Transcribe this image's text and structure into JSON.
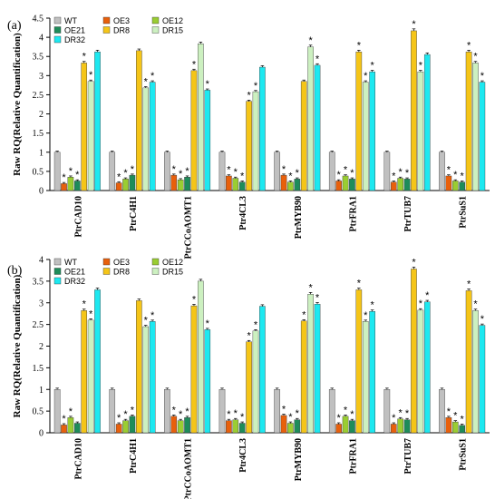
{
  "chart_data": [
    {
      "type": "bar",
      "panel_label": "(a)",
      "title": "",
      "xlabel": "",
      "ylabel": "Raw RQ(Relative Quantification)",
      "ylim": [
        0,
        4.5
      ],
      "yticks": [
        "0",
        "0.5",
        "1",
        "1.5",
        "2",
        "2.5",
        "3",
        "3.5",
        "4",
        "4.5"
      ],
      "grid": false,
      "legend_placement": "top-left",
      "significance_marker": "*",
      "categories": [
        "PtrCAD10",
        "PtrC4H1",
        "PtrCCoAOMT1",
        "Ptr4CL3",
        "PtrMYB90",
        "PtrFRA1",
        "PtrTUB7",
        "PtrSuS1"
      ],
      "series": [
        {
          "name": "WT",
          "color": "#c0c0c0",
          "values": [
            1.0,
            1.0,
            1.0,
            1.0,
            1.0,
            1.0,
            1.0,
            1.0
          ],
          "marked": [
            false,
            false,
            false,
            false,
            false,
            false,
            false,
            false
          ]
        },
        {
          "name": "OE3",
          "color": "#e8600c",
          "values": [
            0.18,
            0.2,
            0.4,
            0.38,
            0.4,
            0.25,
            0.22,
            0.38
          ],
          "marked": [
            true,
            true,
            true,
            true,
            true,
            true,
            true,
            true
          ]
        },
        {
          "name": "OE12",
          "color": "#9acd32",
          "values": [
            0.35,
            0.3,
            0.28,
            0.32,
            0.22,
            0.38,
            0.32,
            0.25
          ],
          "marked": [
            true,
            true,
            true,
            true,
            true,
            true,
            true,
            true
          ]
        },
        {
          "name": "OE21",
          "color": "#1e8c5a",
          "values": [
            0.25,
            0.4,
            0.35,
            0.22,
            0.3,
            0.3,
            0.3,
            0.22
          ],
          "marked": [
            true,
            true,
            true,
            true,
            true,
            true,
            true,
            true
          ]
        },
        {
          "name": "DR8",
          "color": "#f5c518",
          "values": [
            3.33,
            3.65,
            3.13,
            2.33,
            2.85,
            3.62,
            4.17,
            3.62
          ],
          "marked": [
            true,
            false,
            true,
            true,
            false,
            true,
            true,
            true
          ]
        },
        {
          "name": "DR15",
          "color": "#ccf0c0",
          "values": [
            2.85,
            2.68,
            3.83,
            2.58,
            3.75,
            2.83,
            3.1,
            3.33
          ],
          "marked": [
            true,
            true,
            false,
            true,
            true,
            true,
            true,
            true
          ]
        },
        {
          "name": "DR32",
          "color": "#1de8f0",
          "values": [
            3.62,
            2.83,
            2.62,
            3.22,
            3.27,
            3.1,
            3.55,
            2.83
          ],
          "marked": [
            false,
            true,
            true,
            false,
            true,
            true,
            false,
            true
          ]
        }
      ]
    },
    {
      "type": "bar",
      "panel_label": "(b)",
      "title": "",
      "xlabel": "",
      "ylabel": "Raw RQ(Relative Quantification)",
      "ylim": [
        0,
        4
      ],
      "yticks": [
        "0",
        "0.5",
        "1",
        "1.5",
        "2",
        "2.5",
        "3",
        "3.5",
        "4"
      ],
      "grid": false,
      "legend_placement": "top-left",
      "significance_marker": "*",
      "categories": [
        "PtrCAD10",
        "PtrC4H1",
        "PtrCCoAOMT1",
        "Ptr4CL3",
        "PtrMYB90",
        "PtrFRA1",
        "PtrTUB7",
        "PtrSuS1"
      ],
      "series": [
        {
          "name": "WT",
          "color": "#c0c0c0",
          "values": [
            1.0,
            1.0,
            1.0,
            1.0,
            1.0,
            1.0,
            1.0,
            1.0
          ],
          "marked": [
            false,
            false,
            false,
            false,
            false,
            false,
            false,
            false
          ]
        },
        {
          "name": "OE3",
          "color": "#e8600c",
          "values": [
            0.18,
            0.2,
            0.38,
            0.28,
            0.4,
            0.2,
            0.2,
            0.35
          ],
          "marked": [
            true,
            true,
            true,
            true,
            true,
            true,
            true,
            true
          ]
        },
        {
          "name": "OE12",
          "color": "#9acd32",
          "values": [
            0.35,
            0.28,
            0.28,
            0.3,
            0.22,
            0.38,
            0.32,
            0.25
          ],
          "marked": [
            true,
            true,
            true,
            true,
            true,
            true,
            true,
            true
          ]
        },
        {
          "name": "OE21",
          "color": "#1e8c5a",
          "values": [
            0.22,
            0.38,
            0.35,
            0.22,
            0.3,
            0.28,
            0.3,
            0.17
          ],
          "marked": [
            false,
            true,
            true,
            true,
            true,
            true,
            true,
            true
          ]
        },
        {
          "name": "DR8",
          "color": "#f5c518",
          "values": [
            2.82,
            3.05,
            2.93,
            2.1,
            2.58,
            3.3,
            3.78,
            3.28
          ],
          "marked": [
            true,
            false,
            true,
            true,
            true,
            true,
            true,
            true
          ]
        },
        {
          "name": "DR15",
          "color": "#ccf0c0",
          "values": [
            2.6,
            2.45,
            3.5,
            2.35,
            3.2,
            2.57,
            2.83,
            2.82
          ],
          "marked": [
            true,
            true,
            false,
            true,
            true,
            true,
            true,
            true
          ]
        },
        {
          "name": "DR32",
          "color": "#1de8f0",
          "values": [
            3.3,
            2.57,
            2.38,
            2.92,
            2.97,
            2.8,
            3.02,
            2.48
          ],
          "marked": [
            false,
            true,
            true,
            false,
            true,
            true,
            true,
            true
          ]
        }
      ]
    }
  ]
}
